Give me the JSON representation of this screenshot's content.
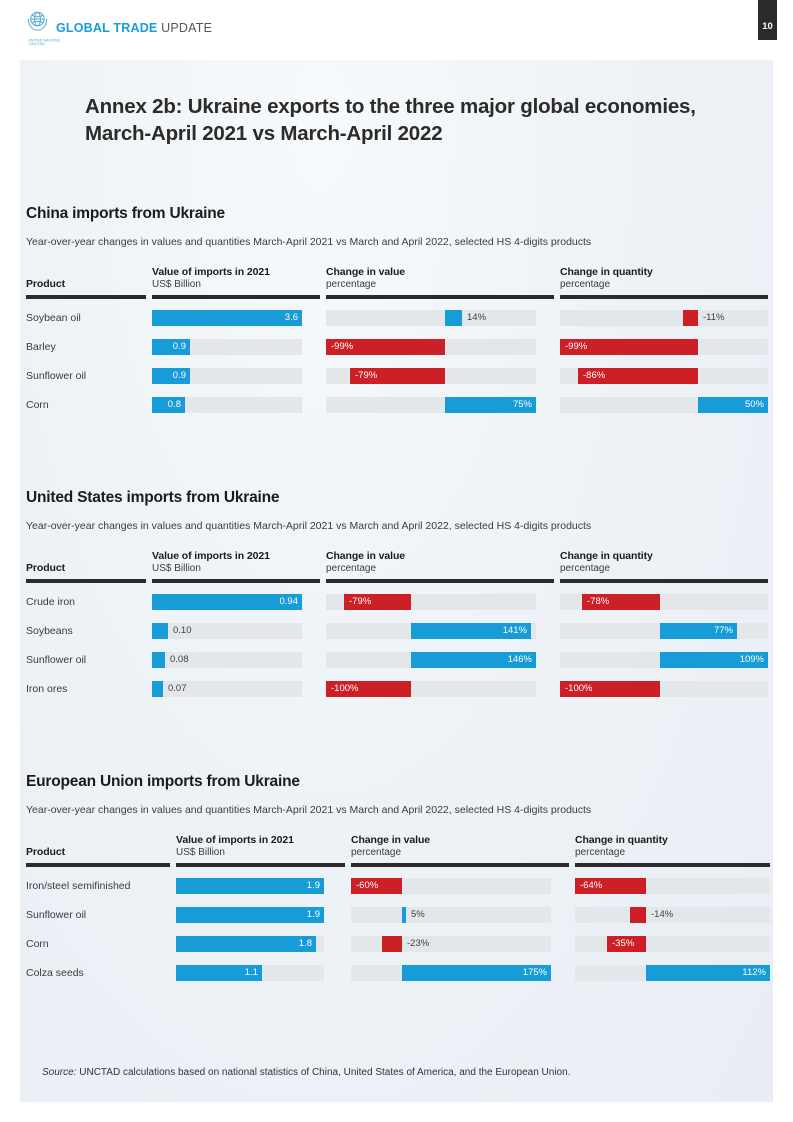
{
  "masthead": {
    "brand_bold": "GLOBAL TRADE",
    "brand_light": "UPDATE",
    "logo_caption_line1": "UNITED NATIONS",
    "logo_caption_line2": "UNCTAD",
    "page_number": "10"
  },
  "title": {
    "line1": "Annex 2b: Ukraine exports to the three major global economies,",
    "line2": "March-April 2021 vs March-April 2022"
  },
  "table_columns": {
    "product": "Product",
    "value": "Value of imports in 2021",
    "value_unit": "US$ Billion",
    "change_value": "Change in value",
    "change_quantity": "Change in quantity",
    "unit_percentage": "percentage"
  },
  "colors": {
    "bar_positive_blue": "#189cd8",
    "bar_negative_red": "#cc1f26",
    "track_gray": "#e4e7e9",
    "rule_dark": "#2b2b2b"
  },
  "chart_data": [
    {
      "type": "bar",
      "title": "China imports from Ukraine",
      "subtitle": "Year-over-year changes in values and quantities March-April 2021 vs March and April 2022, selected HS 4-digits products",
      "value_axis": {
        "label": "Value of imports in 2021",
        "unit": "US$ Billion",
        "max": 3.6
      },
      "change_value_axis": {
        "label": "Change in value",
        "unit": "percentage",
        "min": -99,
        "max": 75
      },
      "change_quantity_axis": {
        "label": "Change in quantity",
        "unit": "percentage",
        "min": -99,
        "max": 50
      },
      "rows": [
        {
          "product": "Soybean oil",
          "value": 3.6,
          "value_label": "3.6",
          "change_value": 14,
          "change_value_label": "14%",
          "change_quantity": -11,
          "change_quantity_label": "-11%"
        },
        {
          "product": "Barley",
          "value": 0.9,
          "value_label": "0.9",
          "change_value": -99,
          "change_value_label": "-99%",
          "change_quantity": -99,
          "change_quantity_label": "-99%"
        },
        {
          "product": "Sunflower oil",
          "value": 0.9,
          "value_label": "0.9",
          "change_value": -79,
          "change_value_label": "-79%",
          "change_quantity": -86,
          "change_quantity_label": "-86%"
        },
        {
          "product": "Corn",
          "value": 0.8,
          "value_label": "0.8",
          "change_value": 75,
          "change_value_label": "75%",
          "change_quantity": 50,
          "change_quantity_label": "50%"
        }
      ]
    },
    {
      "type": "bar",
      "title": "United States imports from Ukraine",
      "subtitle": "Year-over-year changes in values and quantities March-April 2021 vs March and April 2022, selected HS 4-digits products",
      "value_axis": {
        "label": "Value of imports in 2021",
        "unit": "US$ Billion",
        "max": 0.94
      },
      "change_value_axis": {
        "label": "Change in value",
        "unit": "percentage",
        "min": -100,
        "max": 146
      },
      "change_quantity_axis": {
        "label": "Change in quantity",
        "unit": "percentage",
        "min": -100,
        "max": 109
      },
      "rows": [
        {
          "product": "Crude iron",
          "value": 0.94,
          "value_label": "0.94",
          "change_value": -79,
          "change_value_label": "-79%",
          "change_quantity": -78,
          "change_quantity_label": "-78%"
        },
        {
          "product": "Soybeans",
          "value": 0.1,
          "value_label": "0.10",
          "change_value": 141,
          "change_value_label": "141%",
          "change_quantity": 77,
          "change_quantity_label": "77%"
        },
        {
          "product": "Sunflower oil",
          "value": 0.08,
          "value_label": "0.08",
          "change_value": 146,
          "change_value_label": "146%",
          "change_quantity": 109,
          "change_quantity_label": "109%"
        },
        {
          "product": "Iron ores",
          "value": 0.07,
          "value_label": "0.07",
          "change_value": -100,
          "change_value_label": "-100%",
          "change_quantity": -100,
          "change_quantity_label": "-100%"
        }
      ]
    },
    {
      "type": "bar",
      "title": "European Union imports from Ukraine",
      "subtitle": "Year-over-year changes in values and quantities March-April 2021 vs March and April 2022, selected HS 4-digits products",
      "value_axis": {
        "label": "Value of imports in 2021",
        "unit": "US$ Billion",
        "max": 1.9
      },
      "change_value_axis": {
        "label": "Change in value",
        "unit": "percentage",
        "min": -60,
        "max": 175
      },
      "change_quantity_axis": {
        "label": "Change in quantity",
        "unit": "percentage",
        "min": -64,
        "max": 112
      },
      "rows": [
        {
          "product": "Iron/steel semifinished",
          "value": 1.9,
          "value_label": "1.9",
          "change_value": -60,
          "change_value_label": "-60%",
          "change_quantity": -64,
          "change_quantity_label": "-64%"
        },
        {
          "product": "Sunflower oil",
          "value": 1.9,
          "value_label": "1.9",
          "change_value": 5,
          "change_value_label": "5%",
          "change_quantity": -14,
          "change_quantity_label": "-14%"
        },
        {
          "product": "Corn",
          "value": 1.8,
          "value_label": "1.8",
          "change_value": -23,
          "change_value_label": "-23%",
          "change_quantity": -35,
          "change_quantity_label": "-35%"
        },
        {
          "product": "Colza seeds",
          "value": 1.1,
          "value_label": "1.1",
          "change_value": 175,
          "change_value_label": "175%",
          "change_quantity": 112,
          "change_quantity_label": "112%"
        }
      ]
    }
  ],
  "source": {
    "label": "Source:",
    "text": " UNCTAD calculations based on national statistics of China, United States of America, and the European Union."
  }
}
